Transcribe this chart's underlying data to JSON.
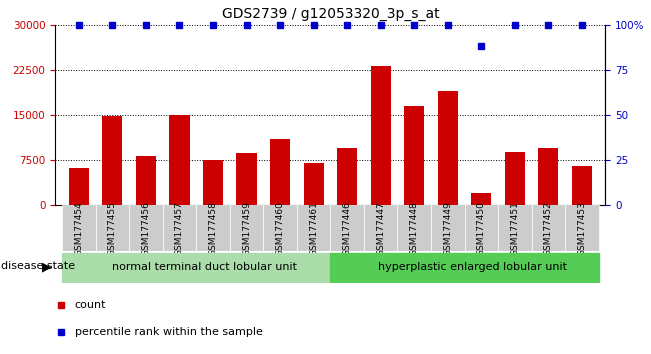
{
  "title": "GDS2739 / g12053320_3p_s_at",
  "samples": [
    "GSM177454",
    "GSM177455",
    "GSM177456",
    "GSM177457",
    "GSM177458",
    "GSM177459",
    "GSM177460",
    "GSM177461",
    "GSM177446",
    "GSM177447",
    "GSM177448",
    "GSM177449",
    "GSM177450",
    "GSM177451",
    "GSM177452",
    "GSM177453"
  ],
  "counts": [
    6200,
    14800,
    8200,
    15000,
    7500,
    8700,
    11000,
    7000,
    9500,
    23200,
    16500,
    19000,
    2000,
    8800,
    9500,
    6500
  ],
  "percentile_values": [
    100,
    100,
    100,
    100,
    100,
    100,
    100,
    100,
    100,
    100,
    100,
    100,
    88,
    100,
    100,
    100
  ],
  "group1_label": "normal terminal duct lobular unit",
  "group2_label": "hyperplastic enlarged lobular unit",
  "group1_count": 8,
  "group2_count": 8,
  "bar_color": "#cc0000",
  "dot_color": "#0000cc",
  "group1_bg": "#aaddaa",
  "group2_bg": "#55cc55",
  "disease_state_label": "disease state",
  "ylim_left": [
    0,
    30000
  ],
  "ylim_right": [
    0,
    100
  ],
  "yticks_left": [
    0,
    7500,
    15000,
    22500,
    30000
  ],
  "yticks_right": [
    0,
    25,
    50,
    75,
    100
  ],
  "legend_count_label": "count",
  "legend_percentile_label": "percentile rank within the sample",
  "background_color": "#ffffff",
  "tick_area_bg": "#cccccc"
}
